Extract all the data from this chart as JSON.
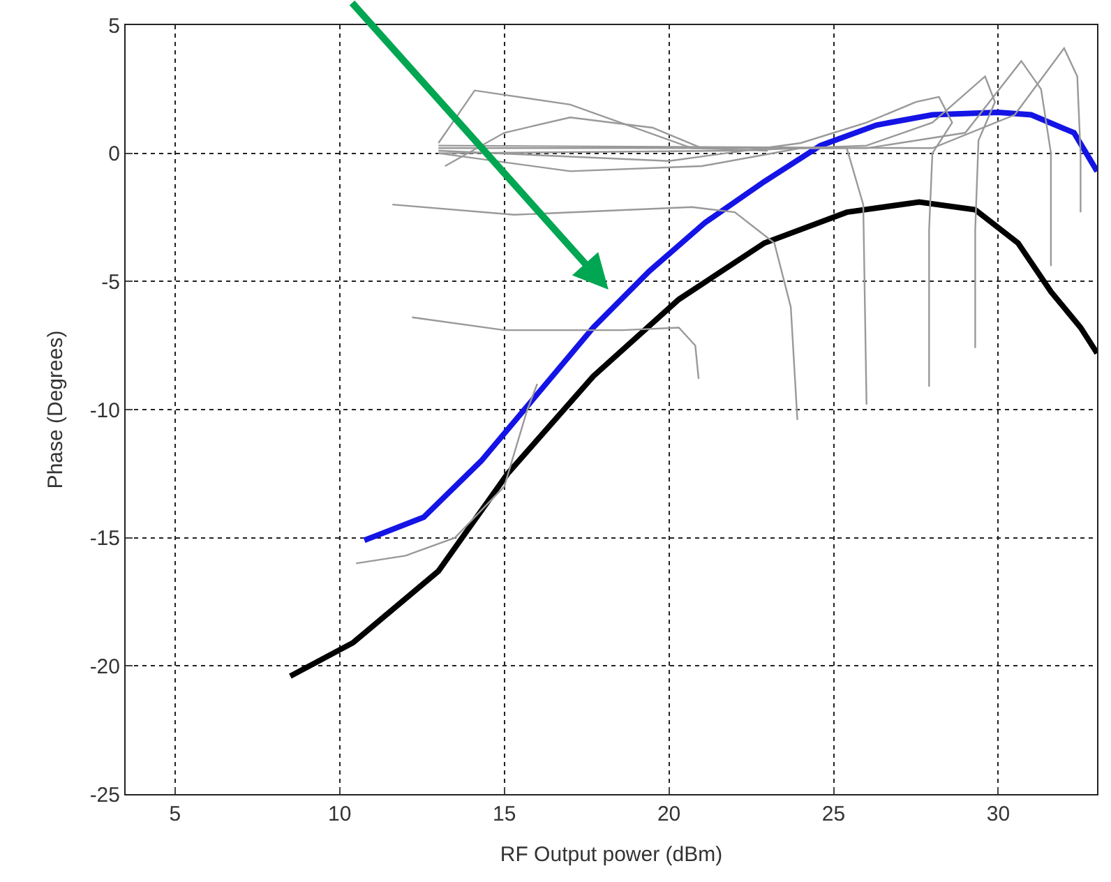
{
  "chart_data": {
    "type": "line",
    "xlabel": "RF Output power (dBm)",
    "ylabel": "Phase (Degrees)",
    "xlim": [
      3.5,
      33
    ],
    "ylim": [
      -25,
      5
    ],
    "xticks": [
      5,
      10,
      15,
      20,
      25,
      30
    ],
    "yticks": [
      -25,
      -20,
      -15,
      -10,
      -5,
      0,
      5
    ],
    "grid": true,
    "marker": "none",
    "line_style": "solid",
    "series": [
      {
        "color": "#1414e6",
        "x": [
          10.75,
          12.55,
          14.3,
          16.0,
          17.7,
          19.4,
          21.1,
          22.9,
          24.6,
          26.3,
          28.0,
          30.0,
          31.0,
          32.3,
          33.0
        ],
        "values": [
          -15.1,
          -14.2,
          -12.0,
          -9.4,
          -6.8,
          -4.6,
          -2.7,
          -1.1,
          0.3,
          1.1,
          1.5,
          1.6,
          1.5,
          0.8,
          -0.7
        ]
      },
      {
        "color": "#000000",
        "x": [
          8.5,
          10.4,
          13.0,
          15.1,
          17.7,
          20.3,
          22.9,
          25.4,
          27.6,
          29.3,
          30.6,
          31.6,
          32.5,
          33.0
        ],
        "values": [
          -20.4,
          -19.1,
          -16.3,
          -12.5,
          -8.7,
          -5.7,
          -3.5,
          -2.3,
          -1.9,
          -2.2,
          -3.5,
          -5.4,
          -6.8,
          -7.8
        ]
      },
      {
        "color": "#999999",
        "x": [
          12.2,
          15.0,
          18.6,
          20.3,
          20.8,
          20.9
        ],
        "values": [
          -6.4,
          -6.9,
          -6.9,
          -6.8,
          -7.5,
          -8.8
        ]
      },
      {
        "color": "#999999",
        "x": [
          11.6,
          15.3,
          20.7,
          22.0,
          23.2,
          23.7,
          23.9
        ],
        "values": [
          -2.0,
          -2.4,
          -2.1,
          -2.3,
          -3.5,
          -6.0,
          -10.4
        ]
      },
      {
        "color": "#999999",
        "x": [
          13.0,
          17.0,
          21.0,
          24.0,
          25.4,
          25.9,
          26.0
        ],
        "values": [
          0.0,
          -0.7,
          -0.5,
          0.2,
          0.2,
          -2.0,
          -9.8
        ]
      },
      {
        "color": "#999999",
        "x": [
          13.0,
          20.0,
          24.0,
          26.0,
          27.5,
          28.2,
          28.6,
          28.0,
          27.9,
          27.9
        ],
        "values": [
          0.1,
          -0.3,
          0.4,
          1.2,
          2.0,
          2.2,
          1.2,
          0.0,
          -3.0,
          -9.1
        ]
      },
      {
        "color": "#999999",
        "x": [
          13.0,
          22.0,
          26.0,
          28.0,
          29.6,
          29.9,
          29.4,
          29.3,
          29.3
        ],
        "values": [
          0.0,
          0.1,
          0.3,
          1.2,
          3.0,
          2.0,
          0.5,
          -3.0,
          -7.6
        ]
      },
      {
        "color": "#999999",
        "x": [
          13.0,
          26.0,
          29.0,
          30.7,
          31.3,
          31.6,
          31.6
        ],
        "values": [
          0.2,
          0.2,
          0.8,
          3.6,
          2.5,
          0.0,
          -4.4
        ]
      },
      {
        "color": "#999999",
        "x": [
          13.0,
          28.0,
          30.5,
          32.0,
          32.4,
          32.5,
          32.5
        ],
        "values": [
          0.3,
          0.2,
          1.5,
          4.1,
          3.0,
          0.0,
          -2.3
        ]
      },
      {
        "color": "#999999",
        "x": [
          13.0,
          14.1,
          17.0,
          20.7,
          23.0
        ],
        "values": [
          0.4,
          2.45,
          1.9,
          0.2,
          0.1
        ]
      },
      {
        "color": "#999999",
        "x": [
          13.2,
          15.0,
          17.0,
          19.5,
          21.0
        ],
        "values": [
          -0.5,
          0.8,
          1.4,
          1.0,
          0.2
        ]
      },
      {
        "color": "#999999",
        "x": [
          10.5,
          12.0,
          13.5,
          15.0,
          15.7,
          16.0
        ],
        "values": [
          -16.0,
          -15.7,
          -15.0,
          -13.0,
          -10.0,
          -9.0
        ]
      }
    ]
  }
}
